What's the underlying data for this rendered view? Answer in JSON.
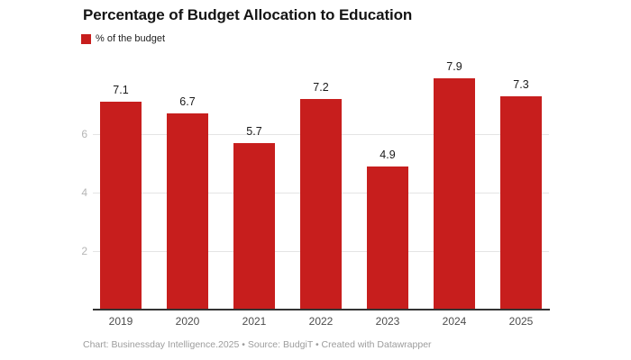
{
  "title": "Percentage of Budget Allocation to Education",
  "legend": {
    "label": "% of the budget",
    "swatch_color": "#c71e1d"
  },
  "footer": "Chart: Businessday Intelligence.2025  • Source: BudgiT • Created with Datawrapper",
  "chart_data": {
    "type": "bar",
    "title": "Percentage of Budget Allocation to Education",
    "series_name": "% of the budget",
    "categories": [
      "2019",
      "2020",
      "2021",
      "2022",
      "2023",
      "2024",
      "2025"
    ],
    "values": [
      7.1,
      6.7,
      5.7,
      7.2,
      4.9,
      7.9,
      7.3
    ],
    "value_labels": [
      "7.1",
      "6.7",
      "5.7",
      "7.2",
      "4.9",
      "7.9",
      "7.3"
    ],
    "xlabel": "",
    "ylabel": "",
    "ylim": [
      0,
      8.5
    ],
    "yticks": [
      2,
      4,
      6
    ],
    "grid": true,
    "legend_position": "top-left",
    "bar_color": "#c71e1d",
    "colors": {
      "bar": "#c71e1d",
      "axis_line": "#333333",
      "gridline": "#e4e4e4",
      "y_tick_text": "#b5b5b5",
      "x_tick_text": "#4d4d4d",
      "value_label_text": "#1a1a1a",
      "footer_text": "#9c9c9c",
      "title_text": "#141414"
    }
  }
}
